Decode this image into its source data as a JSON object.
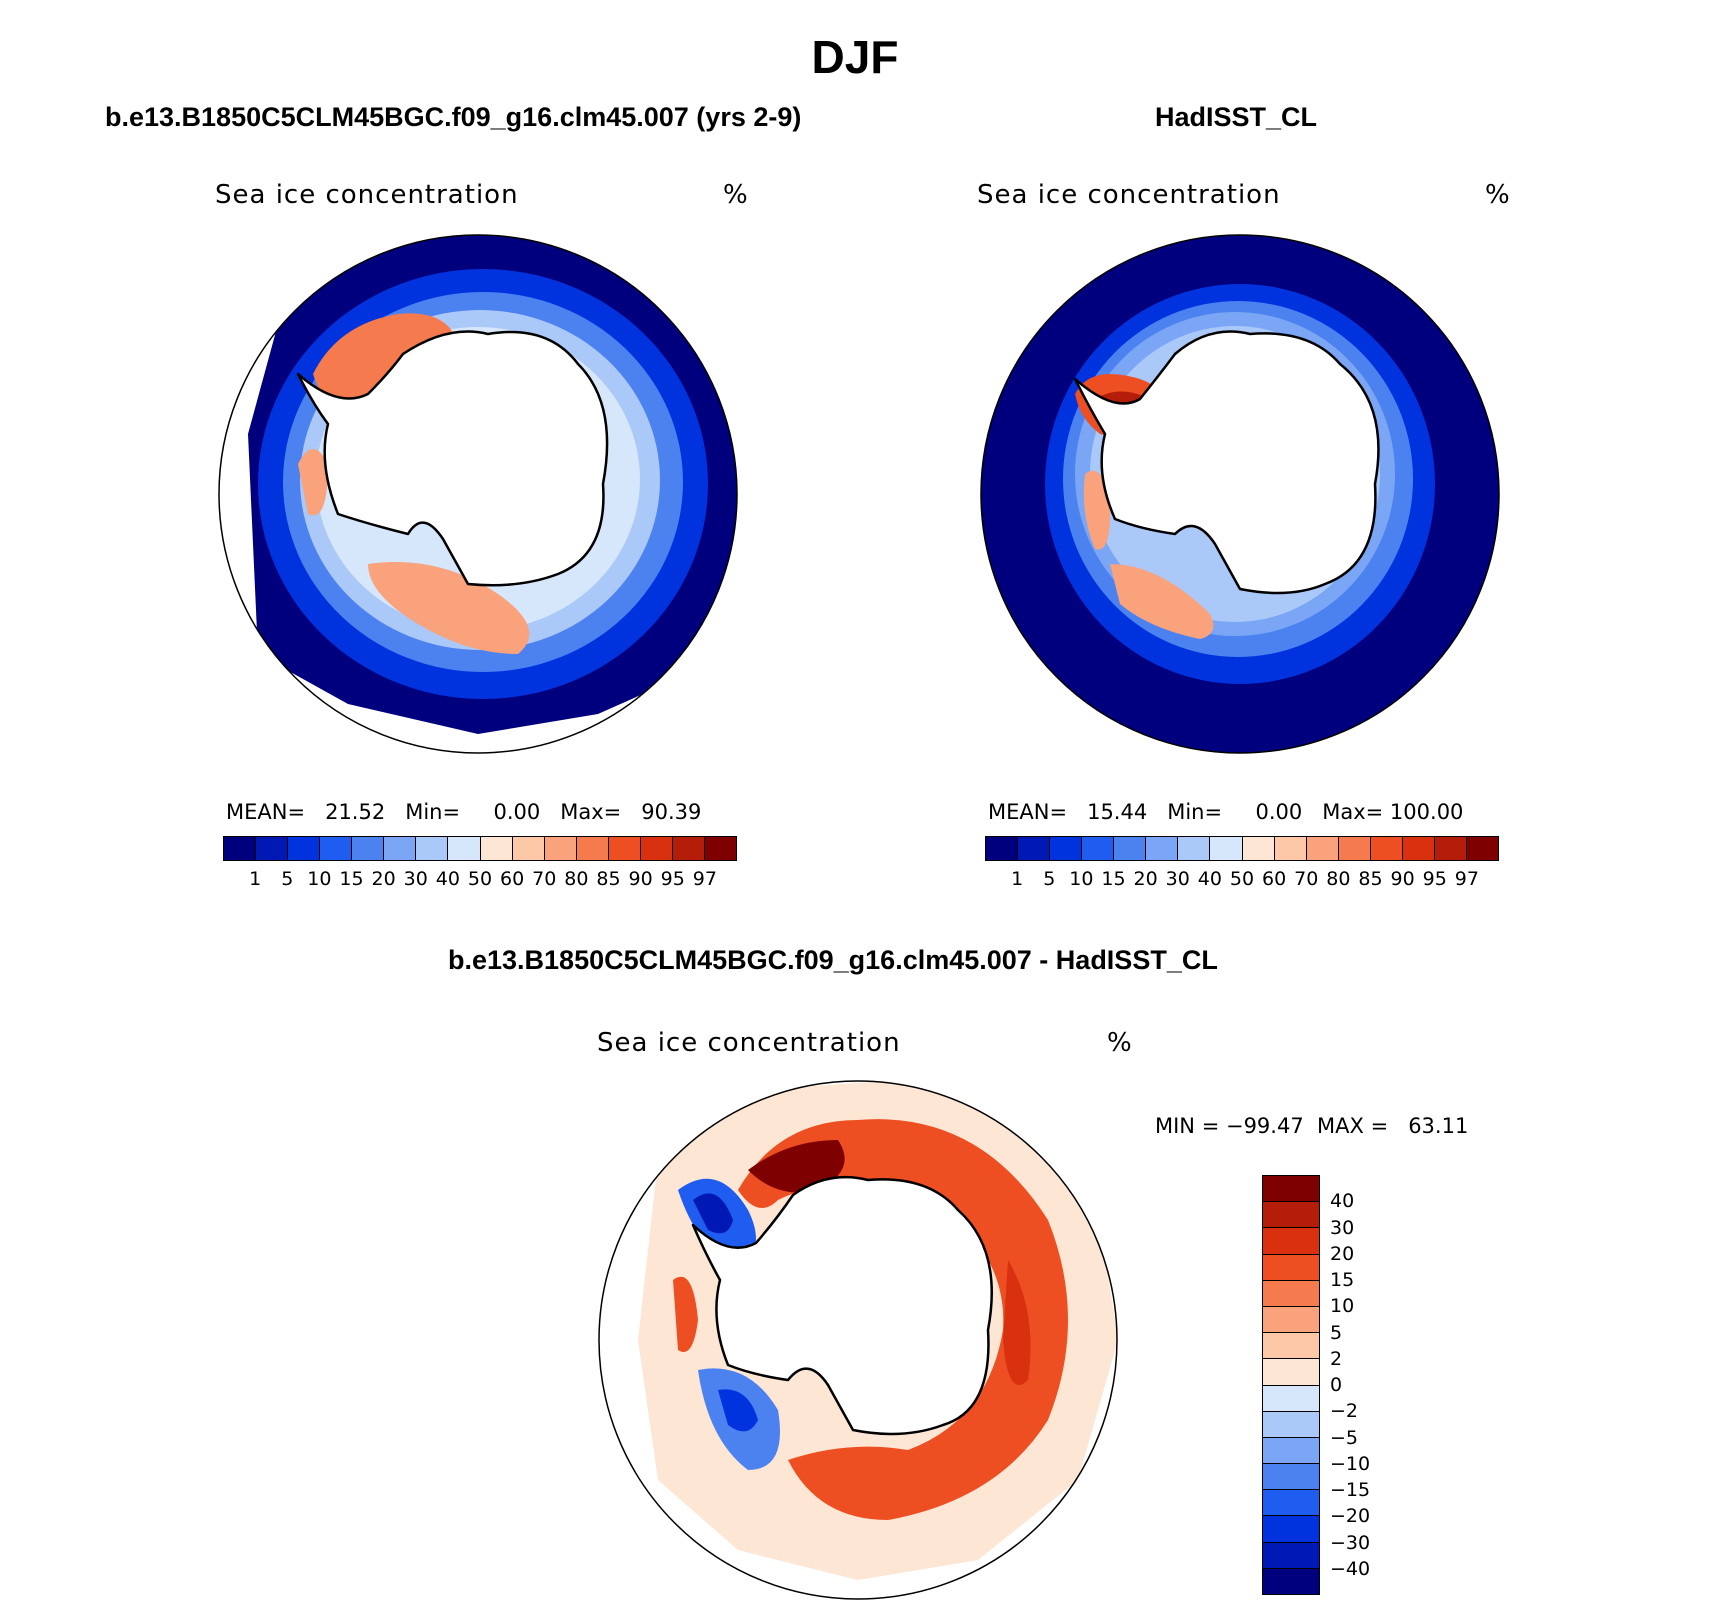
{
  "figure": {
    "title": "DJF",
    "panel_left": {
      "title": "b.e13.B1850C5CLM45BGC.f09_g16.clm45.007 (yrs 2-9)",
      "variable": "Sea ice concentration",
      "units": "%",
      "stats": "MEAN=   21.52   Min=     0.00   Max=   90.39"
    },
    "panel_right": {
      "title": "HadISST_CL",
      "variable": "Sea ice concentration",
      "units": "%",
      "stats": "MEAN=   15.44   Min=     0.00   Max= 100.00"
    },
    "panel_diff": {
      "title": "b.e13.B1850C5CLM45BGC.f09_g16.clm45.007 - HadISST_CL",
      "variable": "Sea ice concentration",
      "units": "%",
      "stats": "MIN = −99.47  MAX =   63.11"
    }
  },
  "colorbar_abs": {
    "levels": [
      "1",
      "5",
      "10",
      "15",
      "20",
      "30",
      "40",
      "50",
      "60",
      "70",
      "80",
      "85",
      "90",
      "95",
      "97"
    ],
    "colors": [
      "#00007e",
      "#0019b4",
      "#0033dd",
      "#1f5cf0",
      "#4c82f0",
      "#7ba6f5",
      "#aac8f8",
      "#d6e6fb",
      "#fde6d4",
      "#fcc8a8",
      "#f9a27c",
      "#f57a4e",
      "#ee4f22",
      "#d9300f",
      "#b31d0a",
      "#7e0000"
    ]
  },
  "colorbar_diff": {
    "levels": [
      "40",
      "30",
      "20",
      "15",
      "10",
      "5",
      "2",
      "0",
      "−2",
      "−5",
      "−10",
      "−15",
      "−20",
      "−30",
      "−40"
    ],
    "colors": [
      "#7e0000",
      "#b31d0a",
      "#d9300f",
      "#ee4f22",
      "#f57a4e",
      "#f9a27c",
      "#fcc8a8",
      "#fde6d4",
      "#d6e6fb",
      "#aac8f8",
      "#7ba6f5",
      "#4c82f0",
      "#1f5cf0",
      "#0033dd",
      "#0019b4",
      "#00007e"
    ]
  }
}
